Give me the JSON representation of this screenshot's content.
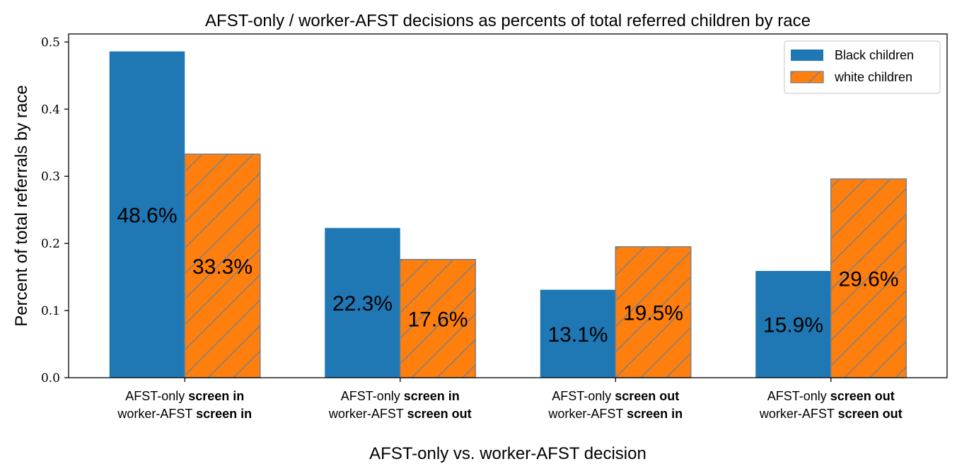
{
  "chart_data": {
    "type": "bar",
    "title": "AFST-only / worker-AFST decisions as percents of total referred children by race",
    "xlabel": "AFST-only vs. worker-AFST decision",
    "ylabel": "Percent of total referrals by race",
    "ylim": [
      0,
      0.512
    ],
    "yticks": [
      "0.0",
      "0.1",
      "0.2",
      "0.3",
      "0.4",
      "0.5"
    ],
    "ytick_values": [
      0.0,
      0.1,
      0.2,
      0.3,
      0.4,
      0.5
    ],
    "categories": [
      {
        "line1_prefix": "AFST-only ",
        "line1_bold": "screen in",
        "line2_prefix": "worker-AFST ",
        "line2_bold": "screen in"
      },
      {
        "line1_prefix": "AFST-only ",
        "line1_bold": "screen in",
        "line2_prefix": "worker-AFST ",
        "line2_bold": "screen out"
      },
      {
        "line1_prefix": "AFST-only ",
        "line1_bold": "screen out",
        "line2_prefix": "worker-AFST ",
        "line2_bold": "screen in"
      },
      {
        "line1_prefix": "AFST-only ",
        "line1_bold": "screen out",
        "line2_prefix": "worker-AFST ",
        "line2_bold": "screen out"
      }
    ],
    "series": [
      {
        "name": "Black children",
        "values": [
          0.486,
          0.223,
          0.131,
          0.159
        ],
        "labels": [
          "48.6%",
          "22.3%",
          "13.1%",
          "15.9%"
        ],
        "color": "#1f77b4",
        "hatch": false
      },
      {
        "name": "white children",
        "values": [
          0.333,
          0.176,
          0.195,
          0.296
        ],
        "labels": [
          "33.3%",
          "17.6%",
          "19.5%",
          "29.6%"
        ],
        "color": "#ff7f0e",
        "hatch": true,
        "edge_color": "#808080"
      }
    ],
    "legend_position": "top-right",
    "grid": false
  }
}
